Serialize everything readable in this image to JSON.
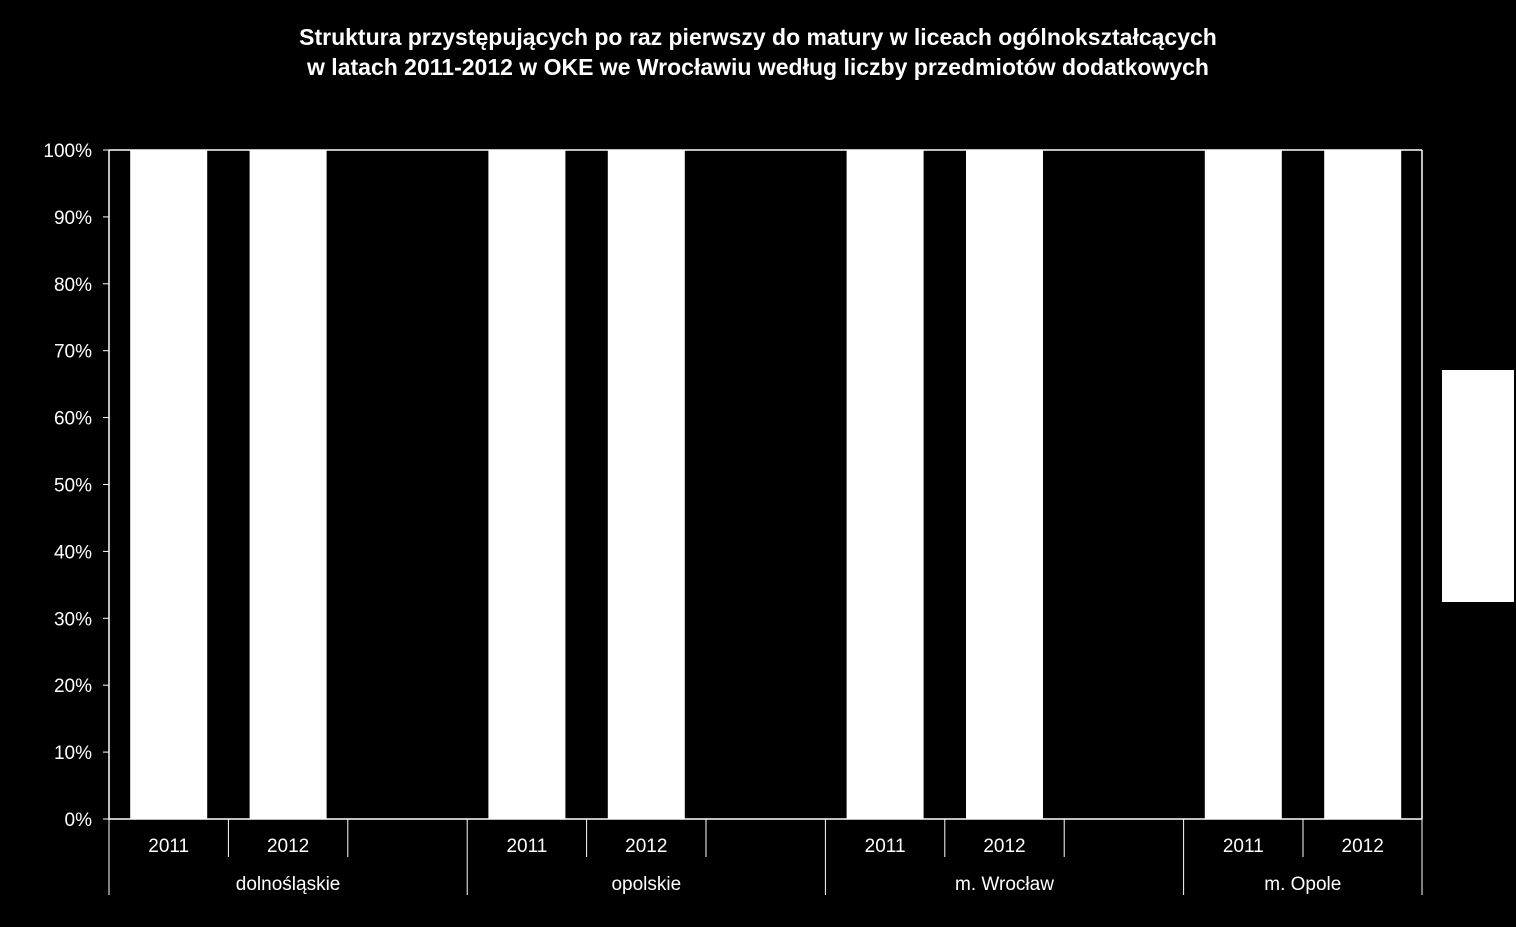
{
  "chart_data": {
    "type": "bar",
    "stacked": true,
    "percent_stacked": true,
    "title": [
      "Struktura przystępujących po raz pierwszy do matury w liceach ogólnokształcących",
      "w latach 2011-2012 w OKE we Wrocławiu według liczby przedmiotów dodatkowych"
    ],
    "ylim": [
      0,
      100
    ],
    "y_ticks": [
      "0%",
      "10%",
      "20%",
      "30%",
      "40%",
      "50%",
      "60%",
      "70%",
      "80%",
      "90%",
      "100%"
    ],
    "groups": [
      {
        "label": "dolnośląskie",
        "categories": [
          "2011",
          "2012",
          ""
        ]
      },
      {
        "label": "opolskie",
        "categories": [
          "2011",
          "2012",
          ""
        ]
      },
      {
        "label": "m. Wrocław",
        "categories": [
          "2011",
          "2012",
          ""
        ]
      },
      {
        "label": "m. Opole",
        "categories": [
          "2011",
          "2012"
        ]
      }
    ],
    "bars": [
      {
        "group": 0,
        "category": "2011",
        "value": 100
      },
      {
        "group": 0,
        "category": "2012",
        "value": 100
      },
      {
        "group": 1,
        "category": "2011",
        "value": 100
      },
      {
        "group": 1,
        "category": "2012",
        "value": 100
      },
      {
        "group": 2,
        "category": "2011",
        "value": 100
      },
      {
        "group": 2,
        "category": "2012",
        "value": 100
      },
      {
        "group": 3,
        "category": "2011",
        "value": 100
      },
      {
        "group": 3,
        "category": "2012",
        "value": 100
      }
    ],
    "bar_color": "#ffffff",
    "background_color": "#000000",
    "text_color": "#ffffff",
    "grid": false,
    "legend": "right"
  }
}
